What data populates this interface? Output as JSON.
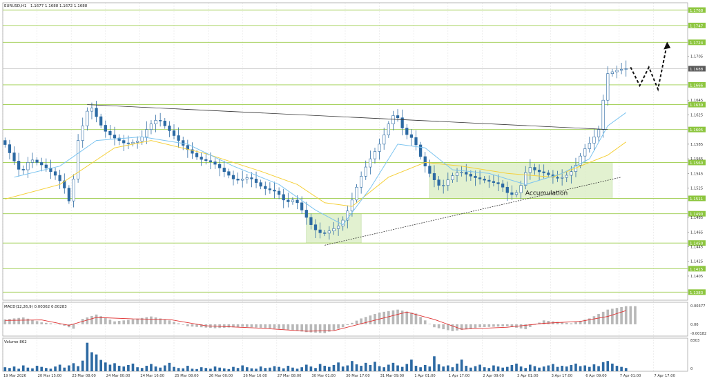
{
  "chart_data": {
    "type": "candlestick",
    "symbol_label": "EURUSD,H1",
    "ohlc_label": "1.1677 1.1688 1.1672 1.1688",
    "grid": true,
    "colors": {
      "background": "#ffffff",
      "candle_up": "#2d6aa3",
      "candle_down": "#2d6aa3",
      "ma_fast": "#7cc4f0",
      "ma_slow": "#f5d03a",
      "level_line": "#9bcc4a",
      "level_label_bg": "#8dc63f",
      "price_label_bg": "#5a5a5a",
      "trendline": "#333333",
      "zone_fill": "#d8ecc0",
      "grid": "#e4e4e4",
      "macd_hist": "#b8b8b8",
      "macd_signal": "#e03030",
      "volume": "#2d6aa3"
    },
    "price_axis": {
      "min": 1.1372,
      "max": 1.1778,
      "ticks": [
        "1.1705",
        "1.1645",
        "1.1625",
        "1.1585",
        "1.1565",
        "1.1545",
        "1.1525",
        "1.1485",
        "1.1465",
        "1.1445",
        "1.1425",
        "1.1405"
      ]
    },
    "current_price": {
      "value": 1.1688,
      "label": "1.1688"
    },
    "levels": [
      {
        "value": 1.1768,
        "label": "1.1768"
      },
      {
        "value": 1.1747,
        "label": "1.1747"
      },
      {
        "value": 1.1724,
        "label": "1.1724"
      },
      {
        "value": 1.1666,
        "label": "1.1666"
      },
      {
        "value": 1.1639,
        "label": "1.1639"
      },
      {
        "value": 1.1605,
        "label": "1.1605"
      },
      {
        "value": 1.156,
        "label": "1.1560"
      },
      {
        "value": 1.1511,
        "label": "1.1511"
      },
      {
        "value": 1.149,
        "label": "1.1490"
      },
      {
        "value": 1.145,
        "label": "1.1450"
      },
      {
        "value": 1.1415,
        "label": "1.1415"
      },
      {
        "value": 1.1383,
        "label": "1.1383"
      }
    ],
    "x_labels": [
      "19 Mar 2026",
      "20 Mar 15:00",
      "23 Mar 08:00",
      "24 Mar 00:00",
      "24 Mar 16:00",
      "25 Mar 08:00",
      "26 Mar 00:00",
      "26 Mar 16:00",
      "27 Mar 08:00",
      "30 Mar 01:00",
      "30 Mar 17:00",
      "31 Mar 09:00",
      "1 Apr 01:00",
      "1 Apr 17:00",
      "2 Apr 09:00",
      "3 Apr 01:00",
      "3 Apr 17:00",
      "6 Apr 09:00",
      "7 Apr 01:00",
      "7 Apr 17:00"
    ],
    "price_path": [
      [
        0,
        1.159
      ],
      [
        4,
        1.1545
      ],
      [
        6,
        1.1565
      ],
      [
        9,
        1.1555
      ],
      [
        12,
        1.154
      ],
      [
        14,
        1.152
      ],
      [
        15,
        1.1495
      ],
      [
        16,
        1.158
      ],
      [
        18,
        1.162
      ],
      [
        19,
        1.164
      ],
      [
        22,
        1.1605
      ],
      [
        24,
        1.1595
      ],
      [
        27,
        1.1585
      ],
      [
        30,
        1.159
      ],
      [
        32,
        1.161
      ],
      [
        34,
        1.162
      ],
      [
        37,
        1.16
      ],
      [
        40,
        1.158
      ],
      [
        43,
        1.1565
      ],
      [
        46,
        1.156
      ],
      [
        49,
        1.1545
      ],
      [
        51,
        1.1535
      ],
      [
        54,
        1.154
      ],
      [
        57,
        1.1525
      ],
      [
        60,
        1.152
      ],
      [
        62,
        1.1505
      ],
      [
        64,
        1.151
      ],
      [
        66,
        1.149
      ],
      [
        68,
        1.147
      ],
      [
        70,
        1.1462
      ],
      [
        72,
        1.1468
      ],
      [
        74,
        1.1475
      ],
      [
        76,
        1.15
      ],
      [
        78,
        1.1535
      ],
      [
        80,
        1.156
      ],
      [
        83,
        1.159
      ],
      [
        85,
        1.162
      ],
      [
        86,
        1.1628
      ],
      [
        88,
        1.16
      ],
      [
        90,
        1.1592
      ],
      [
        92,
        1.156
      ],
      [
        94,
        1.154
      ],
      [
        96,
        1.1525
      ],
      [
        98,
        1.154
      ],
      [
        100,
        1.1548
      ],
      [
        103,
        1.154
      ],
      [
        106,
        1.1535
      ],
      [
        109,
        1.153
      ],
      [
        111,
        1.1515
      ],
      [
        113,
        1.152
      ],
      [
        115,
        1.1555
      ],
      [
        117,
        1.1548
      ],
      [
        119,
        1.1545
      ],
      [
        121,
        1.1538
      ],
      [
        123,
        1.154
      ],
      [
        125,
        1.155
      ],
      [
        127,
        1.1575
      ],
      [
        129,
        1.159
      ],
      [
        131,
        1.161
      ],
      [
        132,
        1.168
      ],
      [
        134,
        1.1685
      ],
      [
        136,
        1.1688
      ]
    ],
    "ma_fast": [
      [
        2,
        1.154
      ],
      [
        12,
        1.1555
      ],
      [
        20,
        1.159
      ],
      [
        30,
        1.1595
      ],
      [
        40,
        1.1585
      ],
      [
        50,
        1.1555
      ],
      [
        60,
        1.153
      ],
      [
        68,
        1.1495
      ],
      [
        74,
        1.1475
      ],
      [
        80,
        1.1525
      ],
      [
        86,
        1.1585
      ],
      [
        92,
        1.158
      ],
      [
        98,
        1.155
      ],
      [
        106,
        1.1545
      ],
      [
        114,
        1.153
      ],
      [
        122,
        1.1545
      ],
      [
        128,
        1.1565
      ],
      [
        132,
        1.161
      ],
      [
        136,
        1.1628
      ]
    ],
    "ma_slow": [
      [
        0,
        1.151
      ],
      [
        12,
        1.153
      ],
      [
        24,
        1.158
      ],
      [
        32,
        1.159
      ],
      [
        44,
        1.1572
      ],
      [
        56,
        1.1548
      ],
      [
        64,
        1.153
      ],
      [
        70,
        1.1505
      ],
      [
        76,
        1.15
      ],
      [
        84,
        1.154
      ],
      [
        92,
        1.156
      ],
      [
        100,
        1.1555
      ],
      [
        110,
        1.1545
      ],
      [
        120,
        1.154
      ],
      [
        128,
        1.156
      ],
      [
        132,
        1.157
      ],
      [
        136,
        1.1588
      ]
    ],
    "trendlines": [
      {
        "from": [
          18,
          1.1639
        ],
        "to": [
          132,
          1.1605
        ],
        "dashed": false
      },
      {
        "from": [
          70,
          1.1447
        ],
        "to": [
          135,
          1.154
        ],
        "dashed": true
      }
    ],
    "zones": [
      {
        "x": [
          66,
          78
        ],
        "y": [
          1.145,
          1.149
        ]
      },
      {
        "x": [
          93,
          133
        ],
        "y": [
          1.1511,
          1.156
        ]
      }
    ],
    "annotations": [
      {
        "text": "Accumulation",
        "x": 120,
        "y": 1.1514
      }
    ],
    "forecast_path": [
      [
        137,
        1.169
      ],
      [
        139,
        1.1665
      ],
      [
        141,
        1.169
      ],
      [
        143,
        1.166
      ],
      [
        145,
        1.1722
      ]
    ],
    "macd": {
      "label": "MACD(12,26,9) 0.00362 0.00283",
      "axis_ticks": [
        "0.00377",
        "0.00",
        "-0.00182"
      ],
      "min": -0.0024,
      "max": 0.0045,
      "histogram": [
        [
          0,
          0.001
        ],
        [
          4,
          0.0014
        ],
        [
          8,
          0.0004
        ],
        [
          12,
          0.0
        ],
        [
          15,
          -0.0009
        ],
        [
          17,
          0.0011
        ],
        [
          20,
          0.002
        ],
        [
          24,
          0.0006
        ],
        [
          28,
          0.001
        ],
        [
          32,
          0.0016
        ],
        [
          36,
          0.0008
        ],
        [
          40,
          -0.0004
        ],
        [
          46,
          -0.0008
        ],
        [
          52,
          -0.0005
        ],
        [
          58,
          -0.0008
        ],
        [
          62,
          -0.0011
        ],
        [
          66,
          -0.0016
        ],
        [
          70,
          -0.0018
        ],
        [
          74,
          -0.0006
        ],
        [
          78,
          0.0012
        ],
        [
          82,
          0.0024
        ],
        [
          86,
          0.003
        ],
        [
          90,
          0.0022
        ],
        [
          94,
          -0.0006
        ],
        [
          98,
          -0.0014
        ],
        [
          104,
          -0.0006
        ],
        [
          110,
          -0.0004
        ],
        [
          114,
          -0.001
        ],
        [
          118,
          0.0008
        ],
        [
          124,
          0.0002
        ],
        [
          128,
          0.0012
        ],
        [
          132,
          0.003
        ],
        [
          136,
          0.0037
        ]
      ],
      "signal": [
        [
          0,
          0.0008
        ],
        [
          8,
          0.0009
        ],
        [
          14,
          -0.0002
        ],
        [
          20,
          0.0014
        ],
        [
          28,
          0.0011
        ],
        [
          36,
          0.001
        ],
        [
          44,
          -0.0003
        ],
        [
          56,
          -0.0008
        ],
        [
          66,
          -0.0014
        ],
        [
          72,
          -0.0013
        ],
        [
          80,
          0.0006
        ],
        [
          88,
          0.0025
        ],
        [
          94,
          0.001
        ],
        [
          100,
          -0.001
        ],
        [
          110,
          -0.0006
        ],
        [
          118,
          0.0002
        ],
        [
          126,
          0.0006
        ],
        [
          132,
          0.0016
        ],
        [
          136,
          0.0028
        ]
      ]
    },
    "volume": {
      "label": "Volume 862",
      "axis_ticks": [
        "8303",
        "0"
      ],
      "max": 8303,
      "values": [
        1100,
        900,
        1300,
        700,
        1600,
        1000,
        800,
        1500,
        1200,
        900,
        700,
        1300,
        1800,
        1000,
        1600,
        2200,
        1400,
        2900,
        7800,
        5200,
        4600,
        3100,
        2400,
        1800,
        2200,
        1500,
        1300,
        1700,
        2100,
        1100,
        900,
        1500,
        2000,
        1300,
        1000,
        1600,
        2300,
        1200,
        900,
        800,
        1500,
        700,
        600,
        1100,
        900,
        700,
        1300,
        1000,
        800,
        600,
        1200,
        900,
        1600,
        1100,
        800,
        700,
        1300,
        900,
        1000,
        1400,
        1200,
        800,
        1500,
        1000,
        700,
        1100,
        1800,
        1300,
        900,
        2000,
        1500,
        1200,
        1700,
        2400,
        1300,
        1600,
        2800,
        1900,
        1500,
        2300,
        1700,
        2600,
        1400,
        1100,
        1800,
        2300,
        1600,
        1200,
        2000,
        3200,
        1500,
        1100,
        1700,
        1300,
        4100,
        1900,
        1300,
        1600,
        1100,
        2100,
        3200,
        1500,
        1000,
        1400,
        1800,
        1100,
        900,
        1600,
        1300,
        1000,
        1200,
        1700,
        2100,
        1300,
        900,
        1800,
        1400,
        1000,
        1300,
        1600,
        2000,
        1200,
        1500,
        1300,
        1700,
        2100,
        1400,
        1600,
        1200,
        1900,
        1400,
        2500,
        2800,
        2100,
        1500,
        1200,
        900
      ]
    }
  }
}
